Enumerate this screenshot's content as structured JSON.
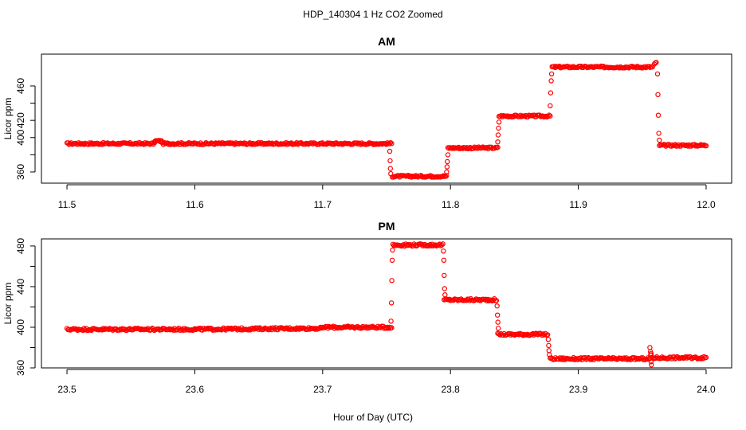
{
  "title": "HDP_140304  1 Hz CO2 Zoomed",
  "xlabel": "Hour of Day (UTC)",
  "point_color": "#ff0000",
  "chart_data": [
    {
      "type": "scatter",
      "title": "AM",
      "ylabel": "Licor ppm",
      "xlim": [
        11.5,
        12.0
      ],
      "ylim": [
        347,
        497
      ],
      "xticks": [
        11.5,
        11.6,
        11.7,
        11.8,
        11.9,
        12.0
      ],
      "xtick_labels": [
        "11.5",
        "11.6",
        "11.7",
        "11.8",
        "11.9",
        "12.0"
      ],
      "yticks": [
        360,
        400,
        420,
        460
      ],
      "ytick_labels": [
        "360",
        "400",
        "420",
        "460"
      ],
      "grid": false,
      "series": [
        {
          "marker": "open-circle",
          "segments": [
            {
              "x": [
                11.5,
                11.5685
              ],
              "y": [
                393,
                393
              ]
            },
            {
              "x": [
                11.5685,
                11.5745
              ],
              "y": [
                396,
                396
              ]
            },
            {
              "x": [
                11.5745,
                11.754
              ],
              "y": [
                393,
                393
              ]
            },
            {
              "x": [
                11.7545,
                11.797
              ],
              "y": [
                355,
                355
              ]
            },
            {
              "x": [
                11.798,
                11.837
              ],
              "y": [
                388,
                388
              ]
            },
            {
              "x": [
                11.838,
                11.878
              ],
              "y": [
                425,
                425
              ]
            },
            {
              "x": [
                11.8795,
                11.958
              ],
              "y": [
                482,
                482
              ]
            },
            {
              "x": [
                11.9595,
                11.961
              ],
              "y": [
                485,
                487
              ]
            },
            {
              "x": [
                11.9635,
                12.0
              ],
              "y": [
                391,
                391
              ]
            }
          ],
          "transitions": [
            [
              11.7525,
              384
            ],
            [
              11.7528,
              373
            ],
            [
              11.753,
              364
            ],
            [
              11.7533,
              358
            ],
            [
              11.797,
              360
            ],
            [
              11.7973,
              366
            ],
            [
              11.7976,
              372
            ],
            [
              11.798,
              380
            ],
            [
              11.837,
              395
            ],
            [
              11.8373,
              403
            ],
            [
              11.8376,
              411
            ],
            [
              11.838,
              418
            ],
            [
              11.878,
              437
            ],
            [
              11.8784,
              452
            ],
            [
              11.8788,
              466
            ],
            [
              11.8791,
              474
            ],
            [
              11.962,
              474
            ],
            [
              11.9623,
              450
            ],
            [
              11.9626,
              426
            ],
            [
              11.963,
              405
            ],
            [
              11.9634,
              397
            ]
          ]
        }
      ]
    },
    {
      "type": "scatter",
      "title": "PM",
      "ylabel": "Licor ppm",
      "xlim": [
        23.5,
        24.0
      ],
      "ylim": [
        360,
        487
      ],
      "xticks": [
        23.5,
        23.6,
        23.7,
        23.8,
        23.9,
        24.0
      ],
      "xtick_labels": [
        "23.5",
        "23.6",
        "23.7",
        "23.8",
        "23.9",
        "24.0"
      ],
      "yticks": [
        360,
        400,
        440,
        480
      ],
      "ytick_labels": [
        "360",
        "400",
        "440",
        "480"
      ],
      "grid": false,
      "series": [
        {
          "marker": "open-circle",
          "segments": [
            {
              "x": [
                23.5,
                23.6
              ],
              "y": [
                398,
                398
              ]
            },
            {
              "x": [
                23.6,
                23.7
              ],
              "y": [
                398,
                399
              ]
            },
            {
              "x": [
                23.7,
                23.754
              ],
              "y": [
                400,
                400
              ]
            },
            {
              "x": [
                23.755,
                23.794
              ],
              "y": [
                481,
                481
              ]
            },
            {
              "x": [
                23.795,
                23.836
              ],
              "y": [
                427,
                427
              ]
            },
            {
              "x": [
                23.837,
                23.876
              ],
              "y": [
                393,
                393
              ]
            },
            {
              "x": [
                23.878,
                23.956
              ],
              "y": [
                369,
                369
              ]
            },
            {
              "x": [
                23.9565,
                23.957
              ],
              "y": [
                372,
                374
              ]
            },
            {
              "x": [
                23.958,
                24.0
              ],
              "y": [
                370,
                370
              ]
            }
          ],
          "transitions": [
            [
              23.7535,
              406
            ],
            [
              23.7538,
              424
            ],
            [
              23.7541,
              446
            ],
            [
              23.7544,
              466
            ],
            [
              23.7547,
              476
            ],
            [
              23.7945,
              475
            ],
            [
              23.7948,
              466
            ],
            [
              23.7951,
              451
            ],
            [
              23.7954,
              438
            ],
            [
              23.7957,
              432
            ],
            [
              23.8365,
              421
            ],
            [
              23.8368,
              412
            ],
            [
              23.8371,
              405
            ],
            [
              23.8374,
              399
            ],
            [
              23.8765,
              388
            ],
            [
              23.8768,
              382
            ],
            [
              23.8771,
              377
            ],
            [
              23.8774,
              373
            ],
            [
              23.956,
              380
            ],
            [
              23.9565,
              376
            ],
            [
              23.9569,
              366
            ],
            [
              23.9572,
              363
            ]
          ]
        }
      ]
    }
  ]
}
